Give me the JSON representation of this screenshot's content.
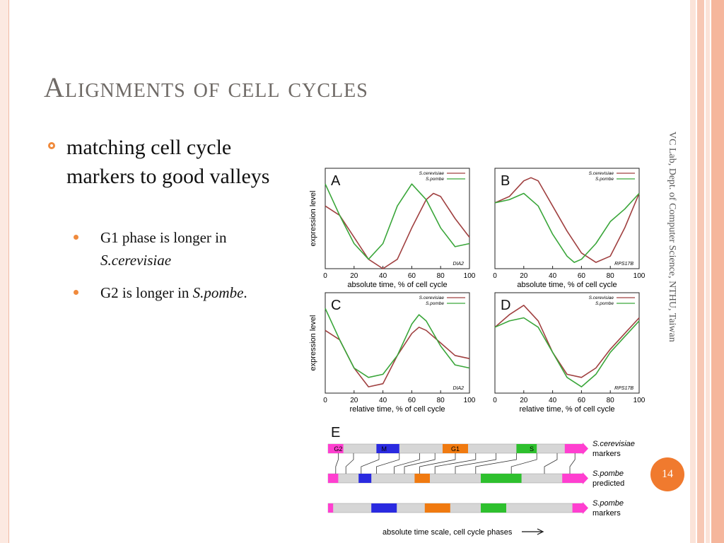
{
  "slide": {
    "title": "Alignments of cell cycles",
    "bullet": "matching cell cycle markers to good valleys",
    "sub1_a": "G1 phase is longer in",
    "sub1_b": "S.cerevisiae",
    "sub2_a": "G2 is longer in ",
    "sub2_b": "S.pombe",
    "sub2_c": ".",
    "side_label": "VC Lab, Dept. of Computer Science, NTHU, Taiwan",
    "page_number": "14"
  },
  "figure": {
    "panels": [
      {
        "letter": "A",
        "gene": "DIA2",
        "xlabel": "absolute time, % of cell cycle"
      },
      {
        "letter": "B",
        "gene": "RPS17B",
        "xlabel": "absolute time, % of cell cycle"
      },
      {
        "letter": "C",
        "gene": "DIA2",
        "xlabel": "relative time, % of cell cycle"
      },
      {
        "letter": "D",
        "gene": "RPS17B",
        "xlabel": "relative time, % of cell cycle"
      }
    ],
    "ylabel": "expression level",
    "legend": [
      "S.cerevisiae",
      "S.pombe"
    ],
    "xticks": [
      "0",
      "20",
      "40",
      "60",
      "80",
      "100"
    ],
    "panelE": {
      "letter": "E",
      "bar1_labels": [
        "G2",
        "M",
        "G1",
        "S"
      ],
      "bar1_name_a": "S.cerevisiae",
      "bar1_name_b": "markers",
      "bar2_name_a": "S.pombe",
      "bar2_name_b": "predicted",
      "bar3_name_a": "S.pombe",
      "bar3_name_b": "markers",
      "scale_label": "absolute time scale, cell cycle phases"
    },
    "colors": {
      "cerevisiae": "#a04040",
      "pombe": "#3aa63a"
    }
  },
  "chart_data": [
    {
      "type": "line",
      "xlim": [
        0,
        100
      ],
      "series": [
        {
          "name": "S.cerevisiae",
          "x": [
            0,
            10,
            20,
            30,
            40,
            50,
            60,
            70,
            75,
            80,
            90,
            100
          ],
          "y": [
            0.4,
            0.1,
            -0.6,
            -1.3,
            -1.6,
            -1.3,
            -0.3,
            0.6,
            0.8,
            0.7,
            0,
            -0.6
          ]
        },
        {
          "name": "S.pombe",
          "x": [
            0,
            10,
            20,
            30,
            40,
            50,
            60,
            70,
            80,
            90,
            100
          ],
          "y": [
            1.1,
            0.1,
            -0.8,
            -1.3,
            -0.8,
            0.4,
            1.1,
            0.6,
            -0.3,
            -0.9,
            -0.8
          ]
        }
      ]
    },
    {
      "type": "line",
      "xlim": [
        0,
        100
      ],
      "series": [
        {
          "name": "S.cerevisiae",
          "x": [
            0,
            10,
            20,
            25,
            30,
            40,
            50,
            60,
            70,
            80,
            90,
            100
          ],
          "y": [
            0.5,
            0.7,
            1.2,
            1.3,
            1.2,
            0.4,
            -0.4,
            -1.1,
            -1.4,
            -1.2,
            -0.3,
            0.8
          ]
        },
        {
          "name": "S.pombe",
          "x": [
            0,
            10,
            20,
            30,
            40,
            50,
            55,
            60,
            70,
            80,
            90,
            100
          ],
          "y": [
            0.5,
            0.6,
            0.8,
            0.4,
            -0.5,
            -1.2,
            -1.4,
            -1.3,
            -0.8,
            -0.1,
            0.3,
            0.8
          ]
        }
      ]
    },
    {
      "type": "line",
      "xlim": [
        0,
        100
      ],
      "series": [
        {
          "name": "S.cerevisiae",
          "x": [
            0,
            10,
            20,
            30,
            40,
            50,
            60,
            65,
            70,
            80,
            90,
            100
          ],
          "y": [
            0.4,
            0.1,
            -0.8,
            -1.4,
            -1.3,
            -0.4,
            0.3,
            0.5,
            0.4,
            0,
            -0.4,
            -0.5
          ]
        },
        {
          "name": "S.pombe",
          "x": [
            0,
            10,
            20,
            30,
            40,
            50,
            60,
            65,
            70,
            80,
            90,
            100
          ],
          "y": [
            1.1,
            0.1,
            -0.8,
            -1.1,
            -1,
            -0.4,
            0.6,
            0.9,
            0.7,
            -0.1,
            -0.7,
            -0.8
          ]
        }
      ]
    },
    {
      "type": "line",
      "xlim": [
        0,
        100
      ],
      "series": [
        {
          "name": "S.cerevisiae",
          "x": [
            0,
            10,
            20,
            30,
            40,
            50,
            60,
            70,
            80,
            90,
            100
          ],
          "y": [
            0.5,
            0.9,
            1.2,
            0.7,
            -0.3,
            -1,
            -1.1,
            -0.8,
            -0.2,
            0.3,
            0.8
          ]
        },
        {
          "name": "S.pombe",
          "x": [
            0,
            10,
            20,
            30,
            40,
            50,
            60,
            70,
            80,
            90,
            100
          ],
          "y": [
            0.5,
            0.7,
            0.8,
            0.5,
            -0.3,
            -1.1,
            -1.4,
            -1,
            -0.3,
            0.2,
            0.7
          ]
        }
      ]
    }
  ]
}
